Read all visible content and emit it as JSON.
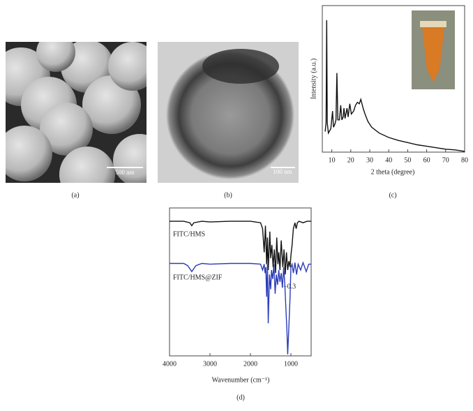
{
  "panels": [
    {
      "label": "(a)",
      "scale_bar": "500 nm"
    },
    {
      "label": "(b)",
      "scale_bar": "100 nm"
    },
    {
      "label": "(c)"
    },
    {
      "label": "(d)"
    }
  ],
  "chart_data": [
    {
      "type": "line",
      "xlabel": "2 theta (degree)",
      "ylabel": "Intensity (a.u.)",
      "color": "#111111",
      "xlim": [
        5,
        80
      ],
      "ylim": [
        0,
        100
      ],
      "xticks": [
        10,
        20,
        30,
        40,
        50,
        60,
        70,
        80
      ],
      "x": [
        6.5,
        7.0,
        7.3,
        7.6,
        8.2,
        9.5,
        10.4,
        10.9,
        11.6,
        12.2,
        12.7,
        13.2,
        14.0,
        14.7,
        15.3,
        16.0,
        16.4,
        17.0,
        18.0,
        18.6,
        19.5,
        20.3,
        21.5,
        22.5,
        23.5,
        24.5,
        25.3,
        26.5,
        27.5,
        29,
        31,
        35,
        40,
        45,
        50,
        55,
        60,
        65,
        70,
        75,
        80
      ],
      "values": [
        14,
        20,
        90,
        20,
        13,
        16,
        28,
        17,
        19,
        22,
        54,
        22,
        22,
        32,
        22,
        24,
        30,
        23,
        30,
        24,
        33,
        26,
        28,
        32,
        34,
        33,
        36,
        30,
        26,
        21,
        17,
        13,
        10,
        8,
        6.5,
        5,
        4,
        3,
        2,
        1.5,
        0.5
      ]
    },
    {
      "type": "line",
      "xlabel": "Wavenumber (cm⁻¹)",
      "annotation": "−0.3",
      "xlim": [
        4000,
        500
      ],
      "ylim": [
        0,
        100
      ],
      "xticks": [
        4000,
        3000,
        2000,
        1000
      ],
      "series": [
        {
          "name": "FITC/HMS",
          "color": "#111111",
          "x": [
            4000,
            3650,
            3500,
            3450,
            3400,
            3200,
            3000,
            2500,
            2000,
            1750,
            1700,
            1660,
            1630,
            1600,
            1580,
            1560,
            1520,
            1500,
            1470,
            1440,
            1410,
            1380,
            1350,
            1320,
            1300,
            1270,
            1240,
            1200,
            1170,
            1140,
            1110,
            1080,
            1050,
            1020,
            1000,
            970,
            940,
            900,
            870,
            840,
            800,
            700,
            600,
            500
          ],
          "values": [
            91,
            91,
            90,
            88,
            90,
            91,
            90.5,
            91,
            91,
            90,
            86,
            70,
            88,
            62,
            80,
            58,
            84,
            66,
            75,
            60,
            72,
            56,
            80,
            62,
            70,
            58,
            78,
            60,
            72,
            55,
            70,
            58,
            64,
            60,
            68,
            75,
            86,
            90,
            86,
            90,
            91,
            90,
            91,
            91
          ]
        },
        {
          "name": "FITC/HMS@ZIF",
          "color": "#2b3cb8",
          "x": [
            4000,
            3650,
            3550,
            3450,
            3350,
            3200,
            3000,
            2500,
            2000,
            1750,
            1700,
            1660,
            1640,
            1620,
            1600,
            1580,
            1560,
            1530,
            1500,
            1480,
            1450,
            1420,
            1390,
            1360,
            1330,
            1300,
            1270,
            1240,
            1210,
            1180,
            1150,
            1120,
            1100,
            1080,
            1050,
            1020,
            1000,
            970,
            940,
            900,
            860,
            820,
            760,
            700,
            620,
            560,
            500
          ],
          "values": [
            62.5,
            62.5,
            61,
            57,
            61,
            62.5,
            62,
            62.5,
            62.5,
            62,
            58,
            62,
            56,
            60,
            40,
            62,
            22,
            55,
            45,
            58,
            52,
            62,
            42,
            55,
            48,
            58,
            50,
            56,
            46,
            60,
            48,
            30,
            18,
            1,
            20,
            40,
            60,
            62,
            56,
            63,
            55,
            62,
            58,
            63,
            57,
            62,
            62
          ]
        }
      ]
    }
  ]
}
